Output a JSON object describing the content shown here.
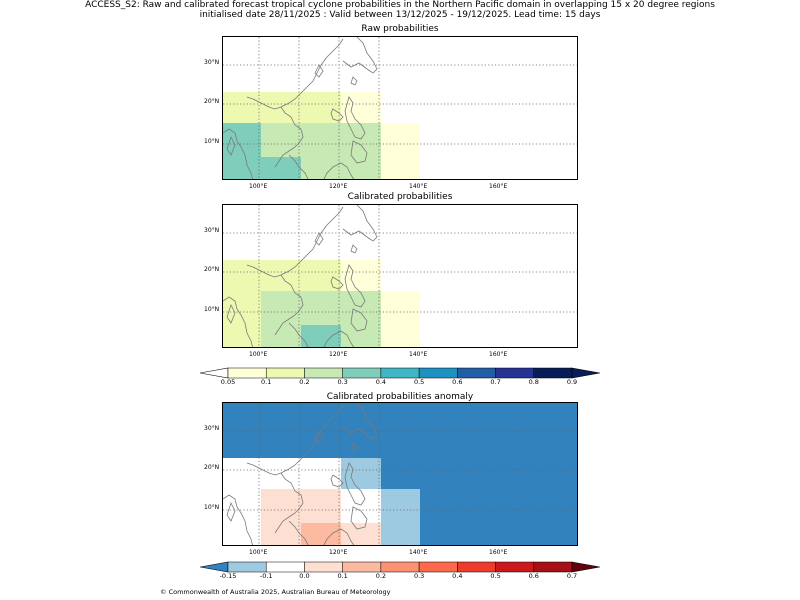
{
  "title_line1": "ACCESS_S2: Raw and calibrated forecast tropical cyclone probabilities in the Northern Pacific domain in overlapping 15 x 20 degree regions",
  "title_line2": "initialised date 28/11/2025 :  Valid between 13/12/2025 - 19/12/2025. Lead time: 15 days",
  "lon_ticks": [
    "100°E",
    "120°E",
    "140°E",
    "160°E"
  ],
  "lat_ticks": [
    "30°N",
    "20°N",
    "10°N"
  ],
  "maps": [
    {
      "title": "Raw probabilities"
    },
    {
      "title": "Calibrated probabilities"
    },
    {
      "title": "Calibrated probabilities anomaly"
    }
  ],
  "prob_colorbar": {
    "labels": [
      "0.05",
      "0.1",
      "0.2",
      "0.3",
      "0.4",
      "0.5",
      "0.6",
      "0.7",
      "0.8",
      "0.9"
    ],
    "colors": [
      "#ffffd9",
      "#edf8b1",
      "#c7e9b4",
      "#7fcdbb",
      "#41b6c4",
      "#1d91c0",
      "#225ea8",
      "#253494",
      "#081d58"
    ],
    "under_color": "#ffffff",
    "over_color": "#081d58"
  },
  "anom_colorbar": {
    "labels": [
      "-0.15",
      "-0.1",
      "0.0",
      "0.1",
      "0.2",
      "0.3",
      "0.4",
      "0.5",
      "0.6",
      "0.7"
    ],
    "colors": [
      "#9ecae1",
      "#ffffff",
      "#fee0d2",
      "#fcbba1",
      "#fc9272",
      "#fb6a4a",
      "#ef3b2c",
      "#cb181d",
      "#a50f15"
    ],
    "under_color": "#3182bd",
    "over_color": "#67000d"
  },
  "footer": "© Commonwealth of Australia 2025, Australian Bureau of Meteorology"
}
